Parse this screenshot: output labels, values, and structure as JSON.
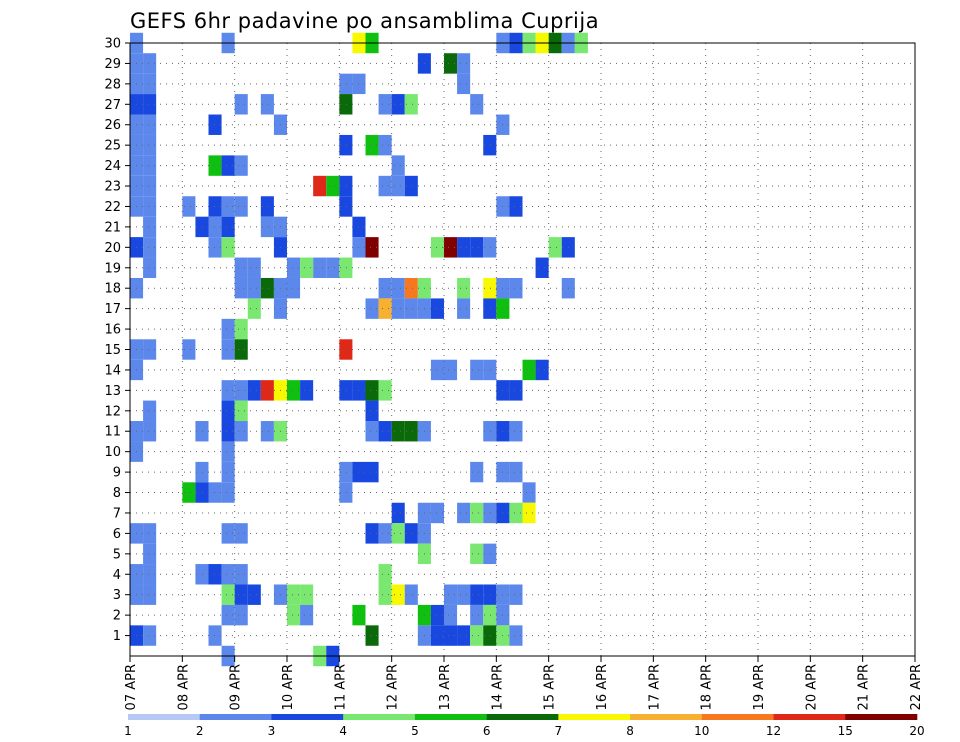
{
  "chart_data": {
    "type": "heatmap",
    "title": "GEFS 6hr padavine po ansamblima Cuprija",
    "xlabel": "",
    "ylabel": "",
    "x_tick_labels": [
      "07 APR",
      "08 APR",
      "09 APR",
      "10 APR",
      "11 APR",
      "12 APR",
      "13 APR",
      "14 APR",
      "15 APR",
      "16 APR",
      "17 APR",
      "18 APR",
      "19 APR",
      "20 APR",
      "21 APR",
      "22 APR"
    ],
    "y_tick_labels": [
      "1",
      "2",
      "3",
      "4",
      "5",
      "6",
      "7",
      "8",
      "9",
      "10",
      "11",
      "12",
      "13",
      "14",
      "15",
      "16",
      "17",
      "18",
      "19",
      "20",
      "21",
      "22",
      "23",
      "24",
      "25",
      "26",
      "27",
      "28",
      "29",
      "30"
    ],
    "x_unit": "6h step (0 = 07 APR 00Z)",
    "n_steps": 60,
    "grid": true,
    "legend_position": "bottom",
    "color_scale": {
      "labels": [
        "1",
        "2",
        "3",
        "4",
        "5",
        "6",
        "7",
        "8",
        "10",
        "12",
        "15",
        "20"
      ],
      "colors": [
        "#b8c8f4",
        "#5c88ec",
        "#1848e0",
        "#7ae870",
        "#10c010",
        "#0a6a0a",
        "#f8f800",
        "#f8b030",
        "#f87820",
        "#e02818",
        "#800000"
      ]
    },
    "cells": [
      [
        30,
        0,
        1
      ],
      [
        30,
        7,
        1
      ],
      [
        30,
        17,
        6
      ],
      [
        30,
        18,
        4
      ],
      [
        30,
        28,
        1
      ],
      [
        30,
        29,
        2
      ],
      [
        30,
        30,
        3
      ],
      [
        30,
        31,
        6
      ],
      [
        30,
        32,
        5
      ],
      [
        30,
        33,
        1
      ],
      [
        30,
        34,
        3
      ],
      [
        29,
        0,
        1
      ],
      [
        29,
        1,
        1
      ],
      [
        29,
        22,
        2
      ],
      [
        29,
        24,
        5
      ],
      [
        29,
        25,
        1
      ],
      [
        28,
        0,
        1
      ],
      [
        28,
        1,
        1
      ],
      [
        28,
        16,
        1
      ],
      [
        28,
        17,
        1
      ],
      [
        28,
        25,
        1
      ],
      [
        27,
        0,
        2
      ],
      [
        27,
        1,
        2
      ],
      [
        27,
        8,
        1
      ],
      [
        27,
        10,
        1
      ],
      [
        27,
        16,
        5
      ],
      [
        27,
        19,
        1
      ],
      [
        27,
        20,
        2
      ],
      [
        27,
        21,
        3
      ],
      [
        27,
        26,
        1
      ],
      [
        26,
        0,
        1
      ],
      [
        26,
        1,
        1
      ],
      [
        26,
        6,
        2
      ],
      [
        26,
        11,
        1
      ],
      [
        26,
        28,
        1
      ],
      [
        25,
        0,
        1
      ],
      [
        25,
        1,
        1
      ],
      [
        25,
        16,
        2
      ],
      [
        25,
        18,
        4
      ],
      [
        25,
        19,
        1
      ],
      [
        25,
        27,
        2
      ],
      [
        24,
        0,
        1
      ],
      [
        24,
        1,
        1
      ],
      [
        24,
        6,
        4
      ],
      [
        24,
        7,
        2
      ],
      [
        24,
        8,
        1
      ],
      [
        24,
        20,
        1
      ],
      [
        23,
        0,
        1
      ],
      [
        23,
        1,
        1
      ],
      [
        23,
        14,
        9
      ],
      [
        23,
        15,
        4
      ],
      [
        23,
        16,
        2
      ],
      [
        23,
        19,
        1
      ],
      [
        23,
        20,
        1
      ],
      [
        23,
        21,
        2
      ],
      [
        22,
        0,
        1
      ],
      [
        22,
        1,
        1
      ],
      [
        22,
        4,
        1
      ],
      [
        22,
        6,
        2
      ],
      [
        22,
        7,
        1
      ],
      [
        22,
        8,
        1
      ],
      [
        22,
        10,
        2
      ],
      [
        22,
        16,
        2
      ],
      [
        22,
        28,
        1
      ],
      [
        22,
        29,
        2
      ],
      [
        21,
        1,
        1
      ],
      [
        21,
        5,
        2
      ],
      [
        21,
        6,
        1
      ],
      [
        21,
        7,
        2
      ],
      [
        21,
        10,
        1
      ],
      [
        21,
        11,
        1
      ],
      [
        21,
        17,
        2
      ],
      [
        20,
        0,
        2
      ],
      [
        20,
        1,
        1
      ],
      [
        20,
        6,
        1
      ],
      [
        20,
        7,
        3
      ],
      [
        20,
        11,
        2
      ],
      [
        20,
        17,
        1
      ],
      [
        20,
        18,
        10
      ],
      [
        20,
        23,
        3
      ],
      [
        20,
        24,
        10
      ],
      [
        20,
        25,
        2
      ],
      [
        20,
        26,
        2
      ],
      [
        20,
        27,
        1
      ],
      [
        20,
        32,
        3
      ],
      [
        20,
        33,
        2
      ],
      [
        19,
        1,
        1
      ],
      [
        19,
        8,
        1
      ],
      [
        19,
        9,
        1
      ],
      [
        19,
        12,
        1
      ],
      [
        19,
        13,
        3
      ],
      [
        19,
        14,
        1
      ],
      [
        19,
        15,
        1
      ],
      [
        19,
        16,
        3
      ],
      [
        19,
        31,
        2
      ],
      [
        18,
        0,
        1
      ],
      [
        18,
        8,
        1
      ],
      [
        18,
        9,
        1
      ],
      [
        18,
        10,
        5
      ],
      [
        18,
        11,
        1
      ],
      [
        18,
        12,
        1
      ],
      [
        18,
        19,
        1
      ],
      [
        18,
        20,
        1
      ],
      [
        18,
        21,
        8
      ],
      [
        18,
        22,
        3
      ],
      [
        18,
        25,
        3
      ],
      [
        18,
        27,
        6
      ],
      [
        18,
        28,
        1
      ],
      [
        18,
        29,
        1
      ],
      [
        18,
        33,
        1
      ],
      [
        17,
        9,
        3
      ],
      [
        17,
        11,
        1
      ],
      [
        17,
        18,
        1
      ],
      [
        17,
        19,
        7
      ],
      [
        17,
        20,
        1
      ],
      [
        17,
        21,
        1
      ],
      [
        17,
        22,
        1
      ],
      [
        17,
        23,
        2
      ],
      [
        17,
        25,
        1
      ],
      [
        17,
        27,
        2
      ],
      [
        17,
        28,
        4
      ],
      [
        16,
        7,
        1
      ],
      [
        16,
        8,
        3
      ],
      [
        15,
        0,
        1
      ],
      [
        15,
        1,
        1
      ],
      [
        15,
        4,
        1
      ],
      [
        15,
        7,
        1
      ],
      [
        15,
        8,
        5
      ],
      [
        15,
        16,
        9
      ],
      [
        14,
        0,
        1
      ],
      [
        14,
        23,
        1
      ],
      [
        14,
        24,
        1
      ],
      [
        14,
        26,
        1
      ],
      [
        14,
        27,
        1
      ],
      [
        14,
        30,
        4
      ],
      [
        14,
        31,
        2
      ],
      [
        13,
        7,
        1
      ],
      [
        13,
        8,
        1
      ],
      [
        13,
        9,
        2
      ],
      [
        13,
        10,
        9
      ],
      [
        13,
        11,
        6
      ],
      [
        13,
        12,
        4
      ],
      [
        13,
        13,
        2
      ],
      [
        13,
        16,
        2
      ],
      [
        13,
        17,
        2
      ],
      [
        13,
        18,
        5
      ],
      [
        13,
        19,
        3
      ],
      [
        13,
        28,
        2
      ],
      [
        13,
        29,
        2
      ],
      [
        12,
        1,
        1
      ],
      [
        12,
        7,
        2
      ],
      [
        12,
        8,
        3
      ],
      [
        12,
        18,
        2
      ],
      [
        11,
        0,
        1
      ],
      [
        11,
        1,
        1
      ],
      [
        11,
        5,
        1
      ],
      [
        11,
        7,
        2
      ],
      [
        11,
        8,
        1
      ],
      [
        11,
        10,
        1
      ],
      [
        11,
        11,
        3
      ],
      [
        11,
        18,
        1
      ],
      [
        11,
        19,
        2
      ],
      [
        11,
        20,
        5
      ],
      [
        11,
        21,
        5
      ],
      [
        11,
        22,
        1
      ],
      [
        11,
        27,
        1
      ],
      [
        11,
        28,
        2
      ],
      [
        11,
        29,
        1
      ],
      [
        10,
        0,
        1
      ],
      [
        10,
        7,
        1
      ],
      [
        9,
        5,
        1
      ],
      [
        9,
        7,
        1
      ],
      [
        9,
        16,
        1
      ],
      [
        9,
        17,
        2
      ],
      [
        9,
        18,
        2
      ],
      [
        9,
        26,
        1
      ],
      [
        9,
        28,
        1
      ],
      [
        9,
        29,
        1
      ],
      [
        8,
        4,
        4
      ],
      [
        8,
        5,
        2
      ],
      [
        8,
        6,
        1
      ],
      [
        8,
        7,
        1
      ],
      [
        8,
        16,
        1
      ],
      [
        8,
        30,
        1
      ],
      [
        7,
        20,
        2
      ],
      [
        7,
        22,
        1
      ],
      [
        7,
        23,
        1
      ],
      [
        7,
        25,
        1
      ],
      [
        7,
        26,
        3
      ],
      [
        7,
        27,
        1
      ],
      [
        7,
        28,
        2
      ],
      [
        7,
        29,
        3
      ],
      [
        7,
        30,
        6
      ],
      [
        6,
        0,
        1
      ],
      [
        6,
        1,
        1
      ],
      [
        6,
        7,
        1
      ],
      [
        6,
        8,
        1
      ],
      [
        6,
        18,
        2
      ],
      [
        6,
        19,
        1
      ],
      [
        6,
        20,
        3
      ],
      [
        6,
        21,
        2
      ],
      [
        6,
        22,
        1
      ],
      [
        5,
        1,
        1
      ],
      [
        5,
        22,
        3
      ],
      [
        5,
        26,
        3
      ],
      [
        5,
        27,
        1
      ],
      [
        4,
        0,
        1
      ],
      [
        4,
        1,
        1
      ],
      [
        4,
        5,
        1
      ],
      [
        4,
        6,
        2
      ],
      [
        4,
        7,
        1
      ],
      [
        4,
        8,
        1
      ],
      [
        4,
        19,
        3
      ],
      [
        3,
        0,
        1
      ],
      [
        3,
        1,
        1
      ],
      [
        3,
        7,
        3
      ],
      [
        3,
        8,
        2
      ],
      [
        3,
        9,
        2
      ],
      [
        3,
        11,
        1
      ],
      [
        3,
        12,
        3
      ],
      [
        3,
        13,
        3
      ],
      [
        3,
        19,
        3
      ],
      [
        3,
        20,
        6
      ],
      [
        3,
        21,
        1
      ],
      [
        3,
        24,
        1
      ],
      [
        3,
        25,
        1
      ],
      [
        3,
        26,
        2
      ],
      [
        3,
        27,
        2
      ],
      [
        3,
        28,
        1
      ],
      [
        3,
        29,
        1
      ],
      [
        2,
        7,
        1
      ],
      [
        2,
        8,
        1
      ],
      [
        2,
        12,
        3
      ],
      [
        2,
        13,
        1
      ],
      [
        2,
        17,
        4
      ],
      [
        2,
        22,
        4
      ],
      [
        2,
        23,
        2
      ],
      [
        2,
        24,
        1
      ],
      [
        2,
        26,
        1
      ],
      [
        2,
        27,
        3
      ],
      [
        2,
        28,
        1
      ],
      [
        1,
        0,
        2
      ],
      [
        1,
        1,
        1
      ],
      [
        1,
        6,
        1
      ],
      [
        1,
        18,
        5
      ],
      [
        1,
        22,
        1
      ],
      [
        1,
        23,
        2
      ],
      [
        1,
        24,
        2
      ],
      [
        1,
        25,
        2
      ],
      [
        1,
        26,
        3
      ],
      [
        1,
        27,
        5
      ],
      [
        1,
        28,
        3
      ],
      [
        1,
        29,
        1
      ],
      [
        0,
        7,
        1
      ],
      [
        0,
        14,
        3
      ],
      [
        0,
        15,
        2
      ]
    ]
  }
}
